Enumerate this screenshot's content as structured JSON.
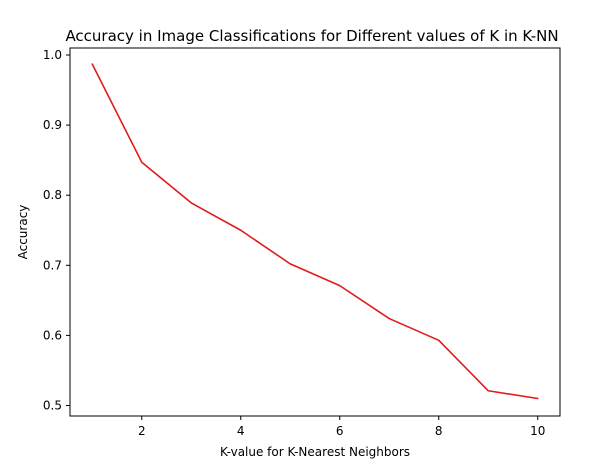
{
  "chart_data": {
    "type": "line",
    "title": "Accuracy in Image Classifications for Different values of K in K-NN",
    "xlabel": "K-value for K-Nearest Neighbors",
    "ylabel": "Accuracy",
    "xlim": [
      0.55,
      10.45
    ],
    "ylim": [
      0.485,
      1.01
    ],
    "xticks": [
      2,
      4,
      6,
      8,
      10
    ],
    "yticks": [
      0.5,
      0.6,
      0.7,
      0.8,
      0.9,
      1.0
    ],
    "xtick_labels": [
      "2",
      "4",
      "6",
      "8",
      "10"
    ],
    "ytick_labels": [
      "0.5",
      "0.6",
      "0.7",
      "0.8",
      "0.9",
      "1.0"
    ],
    "grid": false,
    "series": [
      {
        "color": "#e41a1c",
        "x": [
          1,
          2,
          3,
          4,
          5,
          6,
          7,
          8,
          9,
          10
        ],
        "y": [
          0.987,
          0.847,
          0.789,
          0.75,
          0.702,
          0.671,
          0.624,
          0.593,
          0.521,
          0.51
        ]
      }
    ]
  }
}
